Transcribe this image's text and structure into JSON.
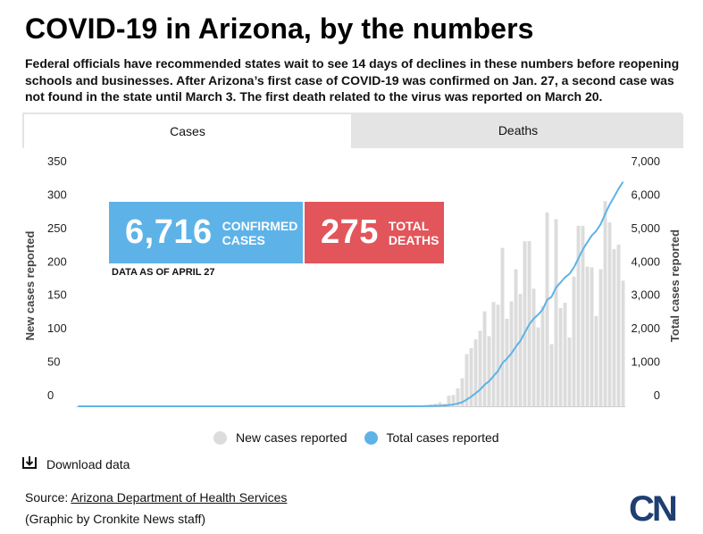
{
  "header": {
    "title": "COVID-19 in Arizona, by the numbers",
    "subtitle": "Federal officials have recommended states wait to see 14 days of declines in these numbers before reopening schools and businesses. After Arizona’s first case of COVID-19 was confirmed on Jan. 27, a second case was not found in the state until March 3. The first death related to the virus was reported on March 20."
  },
  "tabs": [
    {
      "label": "Cases",
      "active": true
    },
    {
      "label": "Deaths",
      "active": false
    }
  ],
  "stats": {
    "cases_value": "6,716",
    "cases_label": "CONFIRMED CASES",
    "deaths_value": "275",
    "deaths_label": "TOTAL DEATHS",
    "as_of": "DATA AS OF APRIL 27"
  },
  "legend": {
    "new_label": "New cases reported",
    "total_label": "Total cases reported"
  },
  "download_label": "Download data",
  "source_prefix": "Source: ",
  "source_link": "Arizona Department of Health Services",
  "credit": "(Graphic by Cronkite News staff)",
  "logo_text": "CN",
  "colors": {
    "bar": "#dcdcdc",
    "line": "#5db3e8",
    "cases_box": "#5db3e8",
    "deaths_box": "#e2555a",
    "logo": "#1f3f73"
  },
  "chart_data": {
    "type": "bar",
    "ylabel_left": "New cases reported",
    "ylabel_right": "Total cases reported",
    "left_ticks": [
      "0",
      "50",
      "100",
      "150",
      "200",
      "250",
      "300",
      "350"
    ],
    "right_ticks": [
      "0",
      "1,000",
      "2,000",
      "3,000",
      "4,000",
      "5,000",
      "6,000",
      "7,000"
    ],
    "ylim_left": [
      0,
      350
    ],
    "ylim_right": [
      0,
      7000
    ],
    "grid": false,
    "series": [
      {
        "name": "New cases reported",
        "type": "bar",
        "values": [
          0,
          0,
          0,
          0,
          0,
          0,
          0,
          0,
          0,
          0,
          0,
          0,
          0,
          0,
          0,
          0,
          0,
          0,
          0,
          0,
          0,
          0,
          0,
          0,
          0,
          0,
          0,
          0,
          0,
          0,
          0,
          0,
          0,
          0,
          0,
          0,
          0,
          0,
          0,
          0,
          0,
          0,
          0,
          0,
          0,
          0,
          0,
          0,
          0,
          0,
          0,
          0,
          0,
          0,
          0,
          0,
          0,
          0,
          0,
          0,
          0,
          0,
          0,
          0,
          0,
          0,
          0,
          0,
          0,
          0,
          0,
          0,
          0,
          0,
          0,
          1,
          0,
          1,
          2,
          3,
          4,
          6,
          4,
          16,
          17,
          27,
          42,
          78,
          87,
          100,
          113,
          142,
          105,
          156,
          152,
          237,
          131,
          157,
          205,
          168,
          247,
          247,
          176,
          118,
          150,
          290,
          93,
          280,
          147,
          155,
          103,
          194,
          270,
          270,
          209,
          208,
          135,
          205,
          307,
          275,
          235,
          242,
          188
        ]
      },
      {
        "name": "Total cases reported",
        "type": "line",
        "values": [
          1,
          1,
          1,
          1,
          1,
          1,
          1,
          1,
          1,
          1,
          1,
          1,
          1,
          1,
          1,
          1,
          1,
          1,
          1,
          1,
          1,
          1,
          1,
          1,
          1,
          1,
          1,
          1,
          1,
          1,
          1,
          1,
          1,
          1,
          1,
          1,
          1,
          1,
          1,
          1,
          1,
          1,
          1,
          1,
          1,
          1,
          1,
          1,
          1,
          1,
          1,
          1,
          1,
          1,
          1,
          1,
          1,
          1,
          1,
          1,
          1,
          1,
          1,
          1,
          1,
          1,
          1,
          1,
          1,
          1,
          1,
          1,
          1,
          1,
          1,
          2,
          2,
          3,
          5,
          8,
          12,
          18,
          22,
          38,
          55,
          82,
          124,
          202,
          289,
          389,
          502,
          644,
          749,
          905,
          1057,
          1294,
          1425,
          1582,
          1787,
          1955,
          2202,
          2449,
          2625,
          2743,
          2893,
          3183,
          3276,
          3556,
          3703,
          3858,
          3961,
          4155,
          4425,
          4695,
          4904,
          5112,
          5247,
          5452,
          5759,
          6034,
          6269,
          6511,
          6716
        ]
      }
    ]
  }
}
